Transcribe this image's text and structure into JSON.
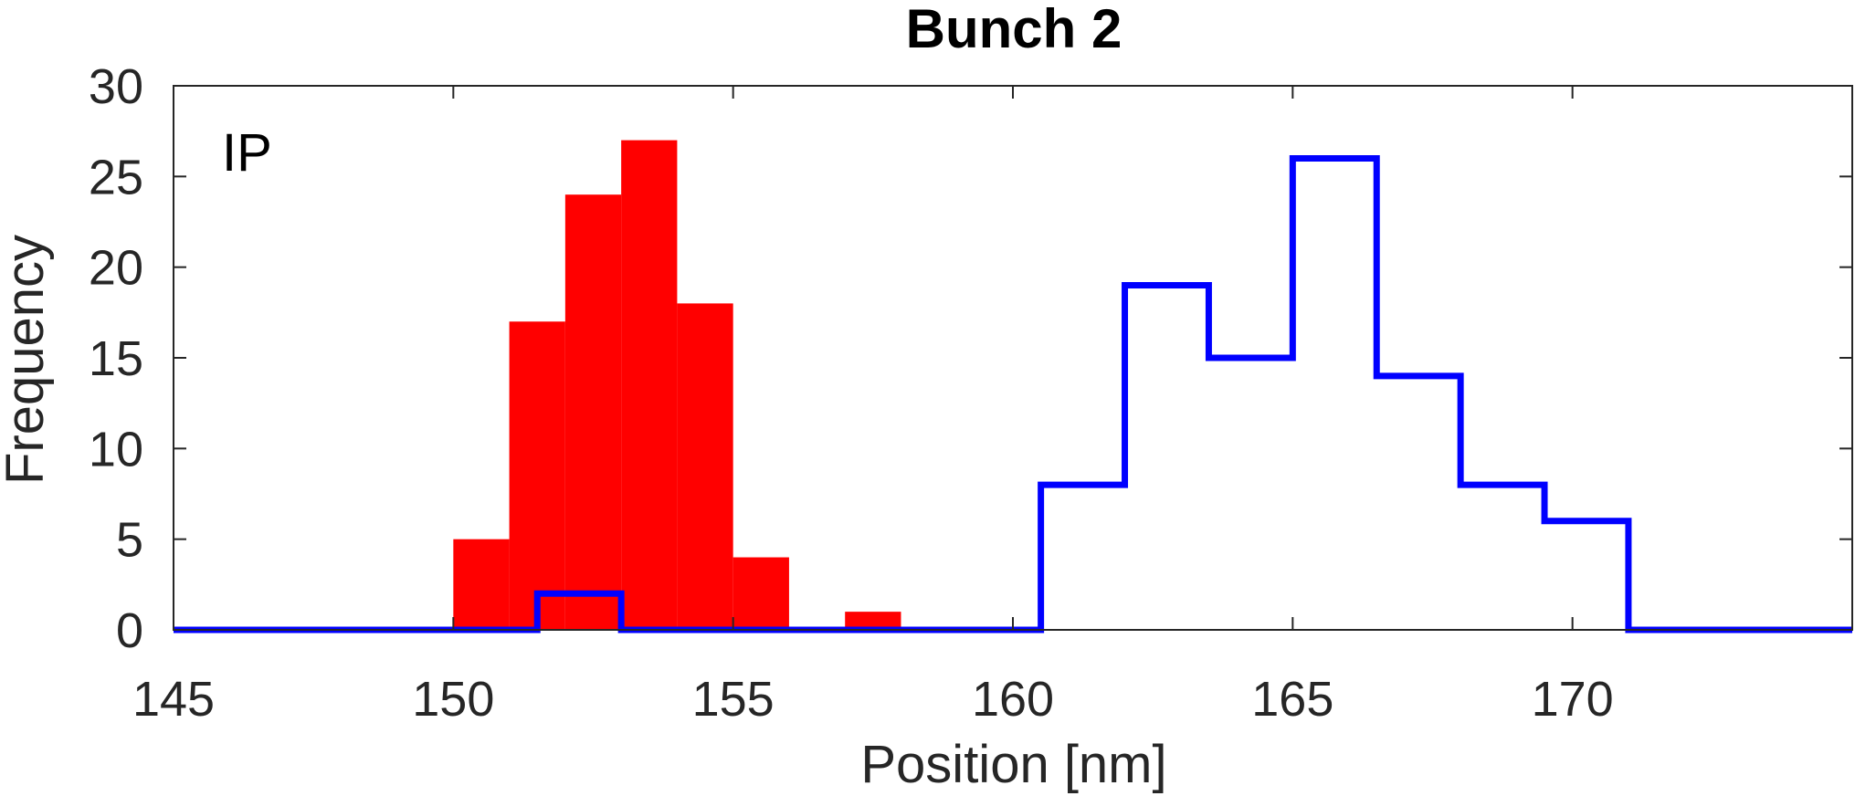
{
  "chart_data": {
    "type": "bar",
    "title": "Bunch 2",
    "xlabel": "Position [nm]",
    "ylabel": "Frequency",
    "annotation": "IP",
    "xlim": [
      145,
      175
    ],
    "ylim": [
      0,
      30
    ],
    "xticks": [
      145,
      150,
      155,
      160,
      165,
      170
    ],
    "yticks": [
      0,
      5,
      10,
      15,
      20,
      25,
      30
    ],
    "grid": false,
    "series": [
      {
        "style": "filled",
        "color": "#ff0000",
        "bins": [
          {
            "x0": 150,
            "x1": 151,
            "value": 5
          },
          {
            "x0": 151,
            "x1": 152,
            "value": 17
          },
          {
            "x0": 152,
            "x1": 153,
            "value": 24
          },
          {
            "x0": 153,
            "x1": 154,
            "value": 27
          },
          {
            "x0": 154,
            "x1": 155,
            "value": 18
          },
          {
            "x0": 155,
            "x1": 156,
            "value": 4
          },
          {
            "x0": 157,
            "x1": 158,
            "value": 1
          }
        ]
      },
      {
        "style": "stairs",
        "color": "#0000ff",
        "bins": [
          {
            "x0": 145,
            "x1": 151.5,
            "value": 0
          },
          {
            "x0": 151.5,
            "x1": 153,
            "value": 2
          },
          {
            "x0": 153,
            "x1": 160.5,
            "value": 0
          },
          {
            "x0": 160.5,
            "x1": 162,
            "value": 8
          },
          {
            "x0": 162,
            "x1": 163.5,
            "value": 19
          },
          {
            "x0": 163.5,
            "x1": 165,
            "value": 15
          },
          {
            "x0": 165,
            "x1": 166.5,
            "value": 26
          },
          {
            "x0": 166.5,
            "x1": 168,
            "value": 14
          },
          {
            "x0": 168,
            "x1": 169.5,
            "value": 8
          },
          {
            "x0": 169.5,
            "x1": 171,
            "value": 6
          },
          {
            "x0": 171,
            "x1": 175,
            "value": 0
          }
        ]
      }
    ]
  }
}
